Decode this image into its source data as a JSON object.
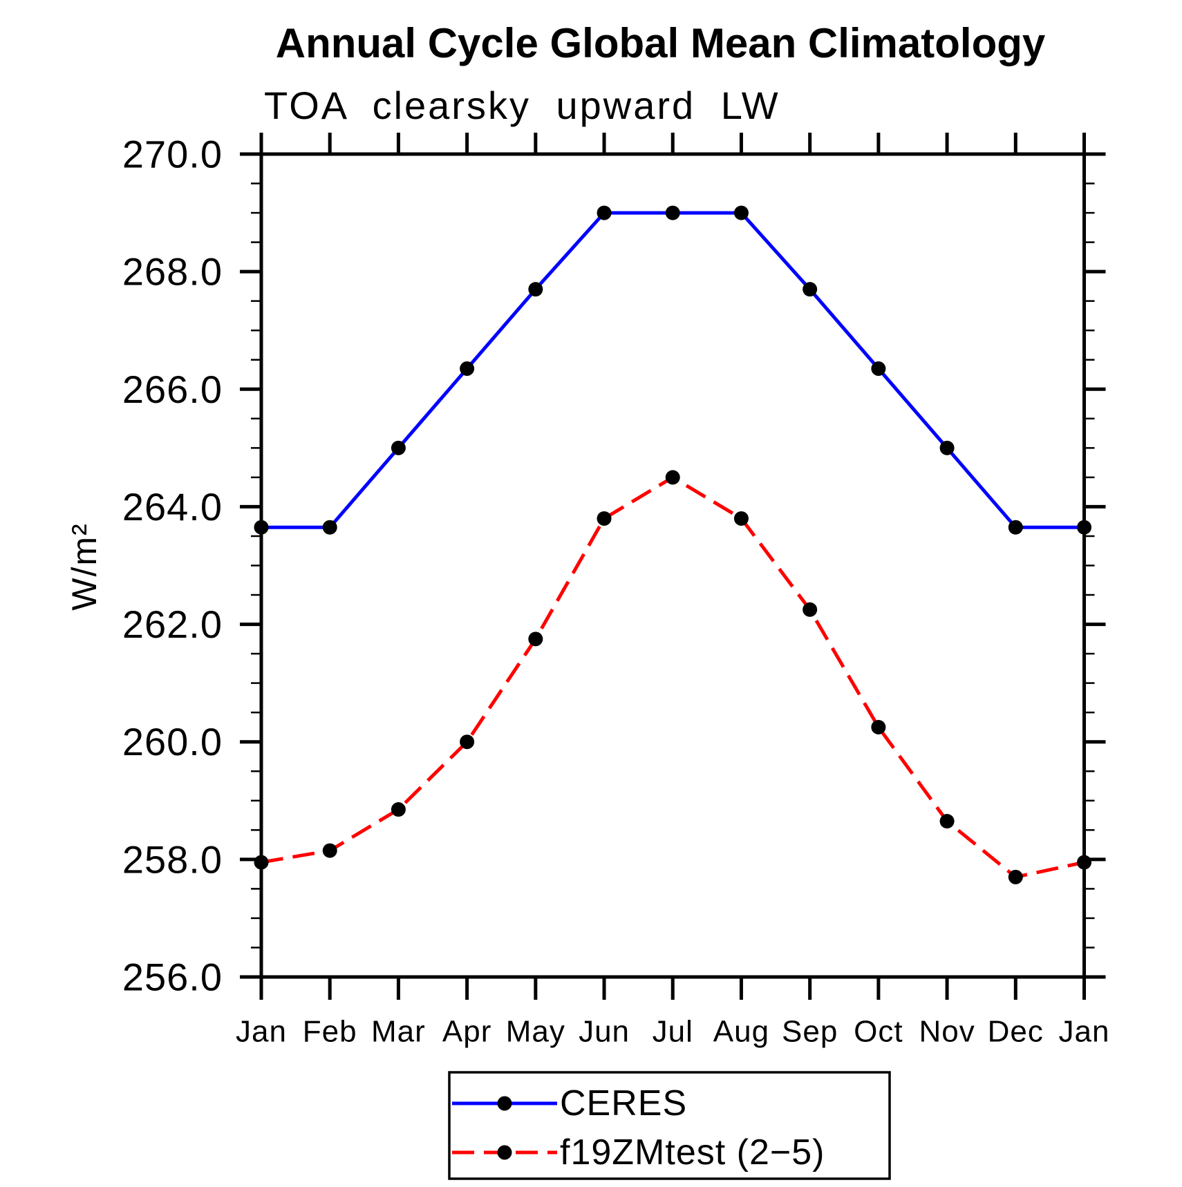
{
  "chart_data": {
    "type": "line",
    "title": "Annual Cycle Global Mean Climatology",
    "subtitle": "TOA clearsky upward LW",
    "ylabel": "W/m²",
    "categories": [
      "Jan",
      "Feb",
      "Mar",
      "Apr",
      "May",
      "Jun",
      "Jul",
      "Aug",
      "Sep",
      "Oct",
      "Nov",
      "Dec",
      "Jan"
    ],
    "ylim": [
      256.0,
      270.0
    ],
    "y_major_ticks": [
      256.0,
      258.0,
      260.0,
      262.0,
      264.0,
      266.0,
      268.0,
      270.0
    ],
    "y_tick_labels": [
      "256.0",
      "258.0",
      "260.0",
      "262.0",
      "264.0",
      "266.0",
      "268.0",
      "270.0"
    ],
    "y_minor_step": 0.5,
    "grid": false,
    "legend_position": "bottom-center",
    "axis_color": "#000000",
    "marker_color": "#000000",
    "series": [
      {
        "name": "CERES",
        "color": "#0000ff",
        "line_style": "solid",
        "marker": "circle",
        "values": [
          263.65,
          263.65,
          265.0,
          266.35,
          267.7,
          269.0,
          269.0,
          269.0,
          267.7,
          266.35,
          265.0,
          263.65,
          263.65
        ]
      },
      {
        "name": "f19ZMtest (2−5)",
        "color": "#ff0000",
        "line_style": "dashed",
        "marker": "circle",
        "values": [
          257.95,
          258.15,
          258.85,
          260.0,
          261.75,
          263.8,
          264.5,
          263.8,
          262.25,
          260.25,
          258.65,
          257.7,
          257.95
        ]
      }
    ]
  }
}
